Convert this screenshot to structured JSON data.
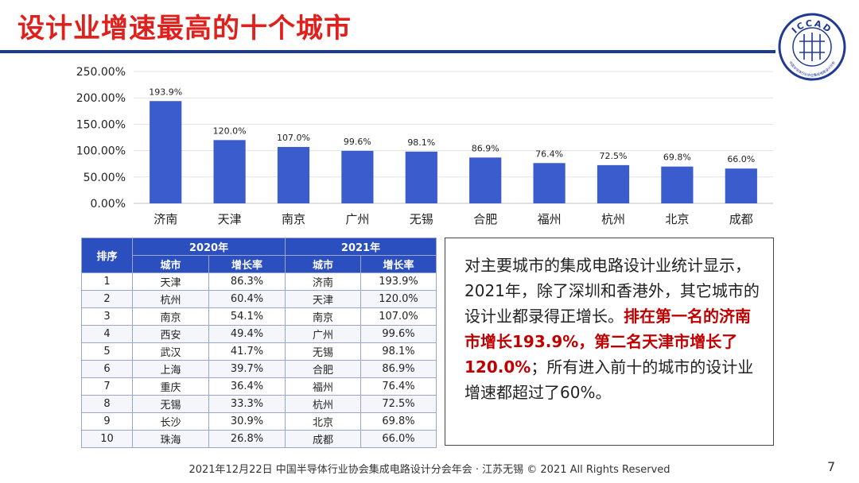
{
  "slide": {
    "title": "设计业增速最高的十个城市",
    "footer": "2021年12月22日 中国半导体行业协会集成电路设计分会年会 · 江苏无锡 © 2021 All Rights Reserved",
    "page_number": "7"
  },
  "logo": {
    "text": "ICCAD",
    "subtext": "中国半导体行业协会集成电路设计分会"
  },
  "colors": {
    "title": "#e0201c",
    "bar": "#3a5ccc",
    "accent": "#1f3a93",
    "table_header": "#2c4fc0",
    "highlight": "#c00000"
  },
  "chart_data": {
    "type": "bar",
    "categories": [
      "济南",
      "天津",
      "南京",
      "广州",
      "无锡",
      "合肥",
      "福州",
      "杭州",
      "北京",
      "成都"
    ],
    "values": [
      193.9,
      120.0,
      107.0,
      99.6,
      98.1,
      86.9,
      76.4,
      72.5,
      69.8,
      66.0
    ],
    "data_labels": [
      "193.9%",
      "120.0%",
      "107.0%",
      "99.6%",
      "98.1%",
      "86.9%",
      "76.4%",
      "72.5%",
      "69.8%",
      "66.0%"
    ],
    "yticks": [
      0,
      50,
      100,
      150,
      200,
      250
    ],
    "ytick_labels": [
      "0.00%",
      "50.00%",
      "100.00%",
      "150.00%",
      "200.00%",
      "250.00%"
    ],
    "ylim": [
      0,
      250
    ],
    "grid": true,
    "title": "",
    "xlabel": "",
    "ylabel": ""
  },
  "table": {
    "rank_header": "排序",
    "year_2020": "2020年",
    "year_2021": "2021年",
    "city_header": "城市",
    "growth_header": "增长率",
    "rows": [
      {
        "rank": "1",
        "city2020": "天津",
        "g2020": "86.3%",
        "city2021": "济南",
        "g2021": "193.9%"
      },
      {
        "rank": "2",
        "city2020": "杭州",
        "g2020": "60.4%",
        "city2021": "天津",
        "g2021": "120.0%"
      },
      {
        "rank": "3",
        "city2020": "南京",
        "g2020": "54.1%",
        "city2021": "南京",
        "g2021": "107.0%"
      },
      {
        "rank": "4",
        "city2020": "西安",
        "g2020": "49.4%",
        "city2021": "广州",
        "g2021": "99.6%"
      },
      {
        "rank": "5",
        "city2020": "武汉",
        "g2020": "41.7%",
        "city2021": "无锡",
        "g2021": "98.1%"
      },
      {
        "rank": "6",
        "city2020": "上海",
        "g2020": "39.7%",
        "city2021": "合肥",
        "g2021": "86.9%"
      },
      {
        "rank": "7",
        "city2020": "重庆",
        "g2020": "36.4%",
        "city2021": "福州",
        "g2021": "76.4%"
      },
      {
        "rank": "8",
        "city2020": "无锡",
        "g2020": "33.3%",
        "city2021": "杭州",
        "g2021": "72.5%"
      },
      {
        "rank": "9",
        "city2020": "长沙",
        "g2020": "30.9%",
        "city2021": "北京",
        "g2021": "69.8%"
      },
      {
        "rank": "10",
        "city2020": "珠海",
        "g2020": "26.8%",
        "city2021": "成都",
        "g2021": "66.0%"
      }
    ]
  },
  "text_box": {
    "part1": "对主要城市的集成电路设计业统计显示，2021年，除了深圳和香港外，其它城市的设计业都录得正增长。",
    "highlight": "排在第一名的济南市增长193.9%，第二名天津市增长了120.0%",
    "part2": "；所有进入前十的城市的设计业增速都超过了60%。"
  }
}
